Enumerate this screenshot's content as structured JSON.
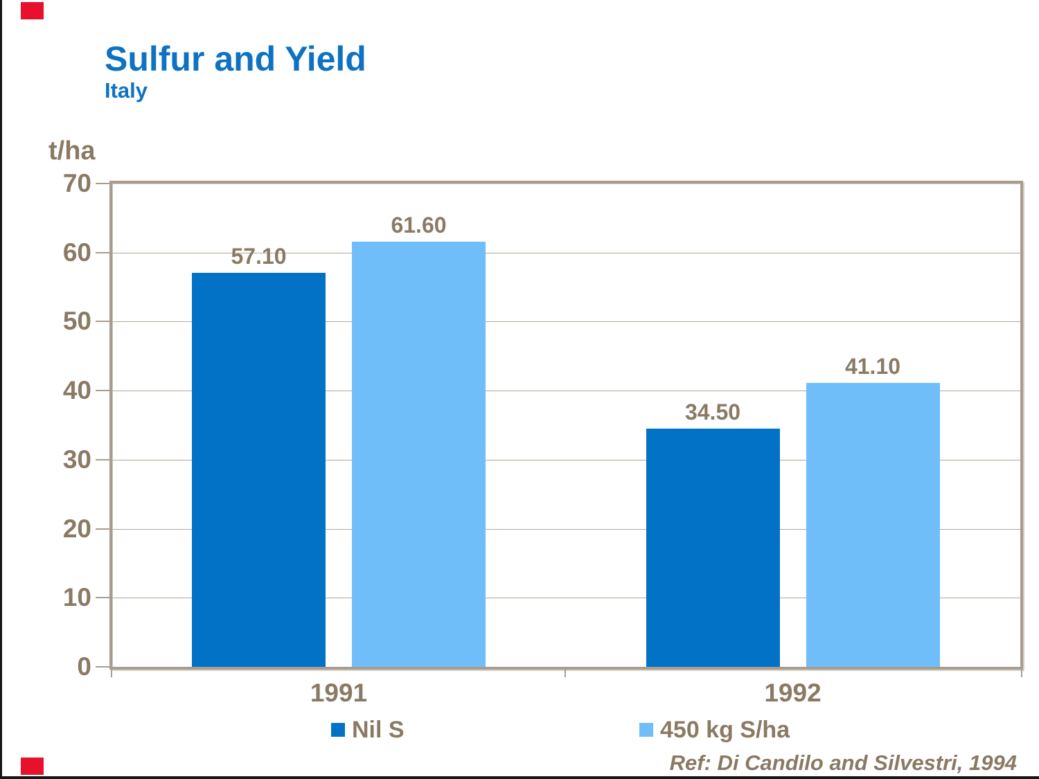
{
  "page": {
    "title": "Sulfur and Yield",
    "subtitle": "Italy",
    "ref": "Ref: Di Candilo and Silvestri, 1994"
  },
  "colors": {
    "title_blue": "#0E72C2",
    "label_brown": "#8A7A64",
    "series_dark_blue": "#0272C6",
    "series_light_blue": "#6FBEF9",
    "frame_tan": "#A89C8E",
    "gridline_tan": "#B2A798",
    "accent_red": "#E8112D",
    "edge_black": "#161616"
  },
  "chart_data": {
    "type": "bar",
    "title": "Sulfur and Yield",
    "subtitle": "Italy",
    "unit_label": "t/ha",
    "categories": [
      "1991",
      "1992"
    ],
    "series": [
      {
        "name": "Nil S",
        "color": "#0272C6",
        "values": [
          57.1,
          34.5
        ]
      },
      {
        "name": "450 kg S/ha",
        "color": "#6FBEF9",
        "values": [
          61.6,
          41.1
        ]
      }
    ],
    "data_labels": [
      [
        "57.10",
        "34.50"
      ],
      [
        "61.60",
        "41.10"
      ]
    ],
    "ylim": [
      0,
      70
    ],
    "yticks": [
      0,
      10,
      20,
      30,
      40,
      50,
      60,
      70
    ],
    "grid": true,
    "legend_position": "bottom",
    "annotation": "Ref: Di Candilo and Silvestri, 1994"
  }
}
